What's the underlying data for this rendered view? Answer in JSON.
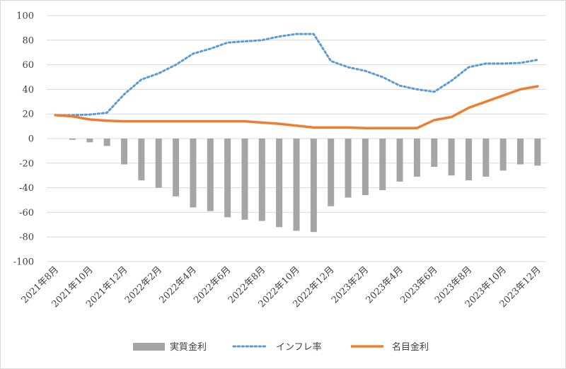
{
  "chart_data": {
    "type": "bar+line",
    "ylim": [
      -100,
      100
    ],
    "y_ticks": [
      100,
      80,
      60,
      40,
      20,
      0,
      -20,
      -40,
      -60,
      -80,
      -100
    ],
    "categories": [
      "2021年8月",
      "2021年9月",
      "2021年10月",
      "2021年11月",
      "2021年12月",
      "2022年1月",
      "2022年2月",
      "2022年3月",
      "2022年4月",
      "2022年5月",
      "2022年6月",
      "2022年7月",
      "2022年8月",
      "2022年9月",
      "2022年10月",
      "2022年11月",
      "2022年12月",
      "2023年1月",
      "2023年2月",
      "2023年3月",
      "2023年4月",
      "2023年5月",
      "2023年6月",
      "2023年7月",
      "2023年8月",
      "2023年9月",
      "2023年10月",
      "2023年11月",
      "2023年12月"
    ],
    "x_tick_labels": [
      "2021年8月",
      "2021年10月",
      "2021年12月",
      "2022年2月",
      "2022年4月",
      "2022年6月",
      "2022年8月",
      "2022年10月",
      "2022年12月",
      "2023年2月",
      "2023年4月",
      "2023年6月",
      "2023年8月",
      "2023年10月",
      "2023年12月"
    ],
    "series": [
      {
        "name": "実質金利",
        "type": "bar",
        "color": "#a5a5a5",
        "values": [
          0,
          -1,
          -3,
          -6,
          -21,
          -34,
          -40,
          -47,
          -56,
          -59,
          -64,
          -66,
          -67,
          -72,
          -75,
          -76,
          -55,
          -48,
          -46,
          -42,
          -35,
          -31,
          -23,
          -30,
          -34,
          -31,
          -26,
          -21,
          -22
        ]
      },
      {
        "name": "インフレ率",
        "type": "line-dotted",
        "color": "#5b9bd5",
        "values": [
          19,
          19,
          19.5,
          21,
          36,
          48,
          53,
          60,
          69,
          73,
          78,
          79,
          80,
          83,
          85,
          85,
          63,
          58,
          55,
          50,
          43,
          40,
          38,
          47,
          58,
          61,
          61,
          61.5,
          64
        ]
      },
      {
        "name": "名目金利",
        "type": "line",
        "color": "#ed7d31",
        "values": [
          19,
          18,
          15.5,
          14.5,
          14,
          14,
          14,
          14,
          14,
          14,
          14,
          14,
          13,
          12,
          10.5,
          9,
          9,
          9,
          8.5,
          8.5,
          8.5,
          8.5,
          15,
          17.5,
          25,
          30,
          35,
          40,
          42.5
        ]
      }
    ],
    "legend_position": "bottom",
    "grid": true
  }
}
